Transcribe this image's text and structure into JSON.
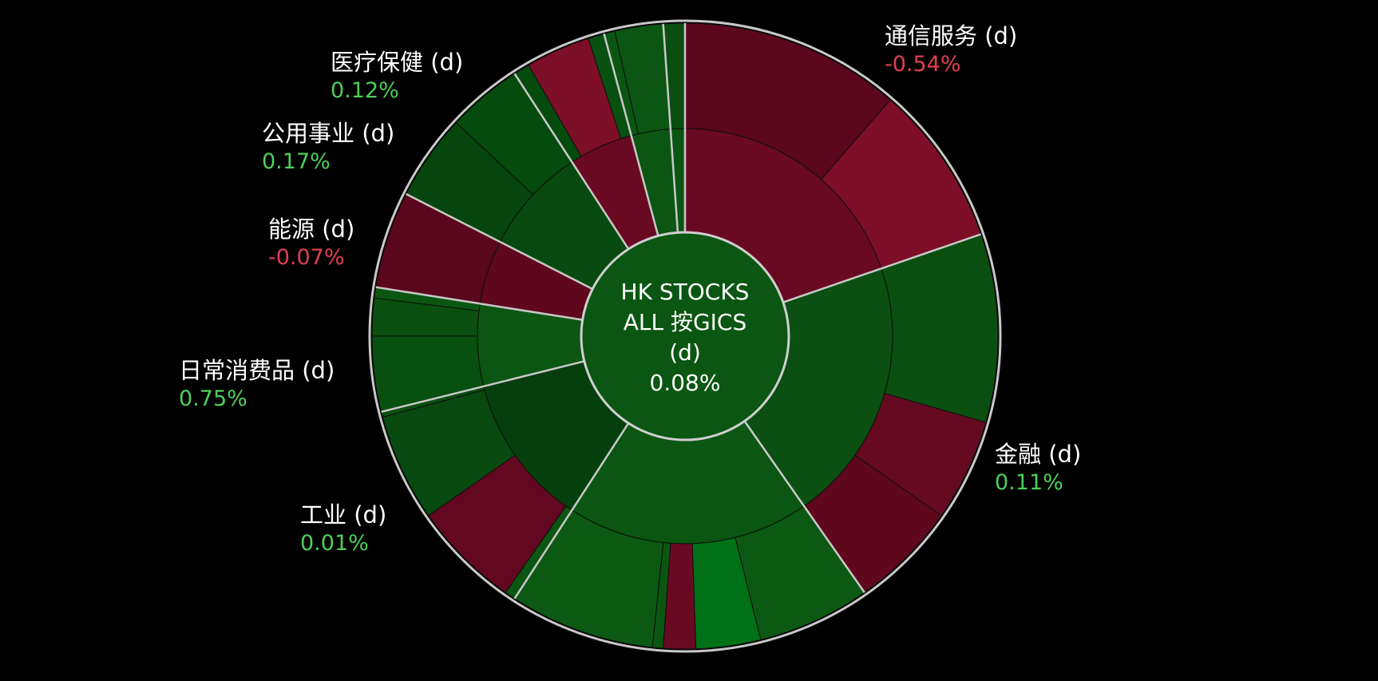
{
  "chart_data": {
    "type": "sunburst",
    "center": {
      "title_lines": [
        "HK STOCKS",
        "ALL 按GICS",
        "(d)"
      ],
      "value": "0.08%"
    },
    "colors": {
      "positive_text": "#4fcf5a",
      "negative_text": "#e0404f",
      "label_text": "#ffffff",
      "background": "#000000",
      "outline": "#c8c8c8"
    },
    "sectors": [
      {
        "name": "通信服务 (d)",
        "value": "-0.54%",
        "change": -0.54,
        "mid": {
          "start": 0,
          "end": 71,
          "color": "#6a0a22"
        },
        "outer": [
          {
            "start": 0,
            "end": 41,
            "color": "#5b061d"
          },
          {
            "start": 41,
            "end": 71,
            "color": "#7e0e28"
          }
        ]
      },
      {
        "name": "金融 (d)",
        "value": "0.11%",
        "change": 0.11,
        "mid": {
          "start": 71,
          "end": 145,
          "color": "#0b4f12"
        },
        "outer": [
          {
            "start": 71,
            "end": 106,
            "color": "#0a4f10"
          },
          {
            "start": 106,
            "end": 125,
            "color": "#660a22"
          },
          {
            "start": 125,
            "end": 145,
            "color": "#5e071d"
          }
        ]
      },
      {
        "name": "工业 (d)",
        "value": "0.01%",
        "change": 0.01,
        "mid": {
          "start": 145,
          "end": 213,
          "color": "#0b5612"
        },
        "outer": [
          {
            "start": 145,
            "end": 166,
            "color": "#0c5914"
          },
          {
            "start": 166,
            "end": 178,
            "color": "#007116"
          },
          {
            "start": 178,
            "end": 184,
            "color": "#6a0a22"
          },
          {
            "start": 184,
            "end": 186,
            "color": "#0b5612"
          },
          {
            "start": 186,
            "end": 213,
            "color": "#0c5914"
          }
        ]
      },
      {
        "name": "日常消费品 (d)",
        "value": "0.75%",
        "change": 0.75,
        "mid": {
          "start": 213,
          "end": 256,
          "color": "#063f0e"
        },
        "outer": [
          {
            "start": 213,
            "end": 215,
            "color": "#0b5612"
          },
          {
            "start": 215,
            "end": 235,
            "color": "#620820"
          },
          {
            "start": 235,
            "end": 255,
            "color": "#08490f"
          },
          {
            "start": 255,
            "end": 256,
            "color": "#0a4f10"
          }
        ]
      },
      {
        "name": "能源 (d)",
        "value": "-0.07%",
        "change": -0.07,
        "mid": {
          "start": 256,
          "end": 279,
          "color": "#0b5612"
        },
        "outer": [
          {
            "start": 256,
            "end": 270,
            "color": "#085010"
          },
          {
            "start": 270,
            "end": 277,
            "color": "#0a4f10"
          },
          {
            "start": 277,
            "end": 279,
            "color": "#0b5612"
          }
        ]
      },
      {
        "name": "公用事业 (d)",
        "value": "0.17%",
        "change": 0.17,
        "mid": {
          "start": 279,
          "end": 297,
          "color": "#5e071d"
        },
        "outer": [
          {
            "start": 279,
            "end": 297,
            "color": "#5a061c"
          }
        ]
      },
      {
        "name": "医疗保健 (d)",
        "value": "0.12%",
        "change": 0.12,
        "mid": {
          "start": 297,
          "end": 327,
          "color": "#08490f"
        },
        "outer": [
          {
            "start": 297,
            "end": 313,
            "color": "#06450d"
          },
          {
            "start": 313,
            "end": 327,
            "color": "#064b0e"
          }
        ]
      },
      {
        "name": "",
        "value": "",
        "change": null,
        "mid": {
          "start": 327,
          "end": 345,
          "color": "#6a0a22"
        },
        "outer": [
          {
            "start": 327,
            "end": 330,
            "color": "#064b0e"
          },
          {
            "start": 330,
            "end": 342,
            "color": "#7d0e28"
          },
          {
            "start": 342,
            "end": 345,
            "color": "#085010"
          }
        ]
      },
      {
        "name": "",
        "value": "",
        "change": null,
        "mid": {
          "start": 345,
          "end": 360,
          "color": "#0b5612"
        },
        "outer": [
          {
            "start": 345,
            "end": 347,
            "color": "#0b5612"
          },
          {
            "start": 347,
            "end": 356,
            "color": "#0b5612"
          },
          {
            "start": 356,
            "end": 360,
            "color": "#0a4f10"
          }
        ]
      }
    ],
    "labels": [
      {
        "sector": "通信服务 (d)",
        "value": "-0.54%",
        "sign": "negative"
      },
      {
        "sector": "金融 (d)",
        "value": "0.11%",
        "sign": "positive"
      },
      {
        "sector": "工业 (d)",
        "value": "0.01%",
        "sign": "positive"
      },
      {
        "sector": "日常消费品 (d)",
        "value": "0.75%",
        "sign": "positive"
      },
      {
        "sector": "能源 (d)",
        "value": "-0.07%",
        "sign": "negative"
      },
      {
        "sector": "公用事业 (d)",
        "value": "0.17%",
        "sign": "positive"
      },
      {
        "sector": "医疗保健 (d)",
        "value": "0.12%",
        "sign": "positive"
      }
    ],
    "separators_deg": [
      71,
      145,
      213,
      256,
      279,
      297,
      327,
      345,
      356
    ]
  }
}
